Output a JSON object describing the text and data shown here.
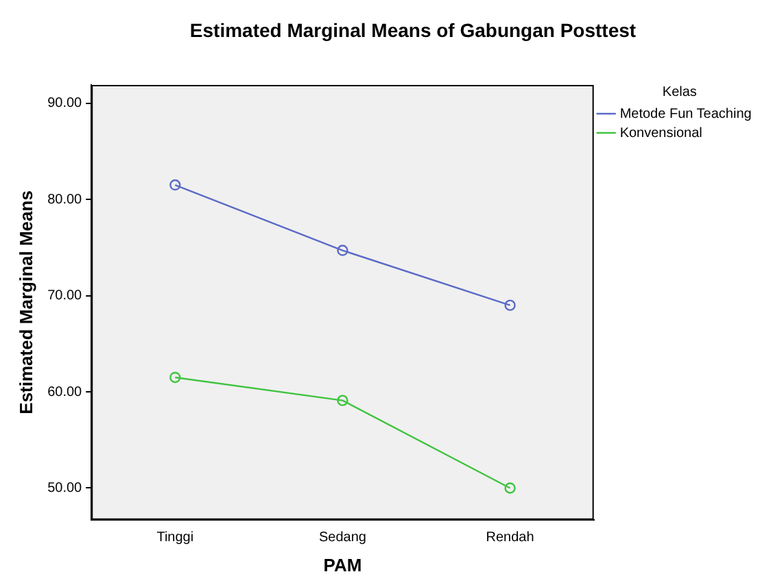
{
  "chart_data": {
    "type": "line",
    "title": "Estimated Marginal Means of Gabungan Posttest",
    "xlabel": "PAM",
    "ylabel": "Estimated Marginal Means",
    "legend_title": "Kelas",
    "legend": "top right",
    "marker": "circle",
    "grid": false,
    "categories": [
      "Tinggi",
      "Sedang",
      "Rendah"
    ],
    "series": [
      {
        "name": "Metode Fun Teaching",
        "color": "#5b6bc6",
        "values": [
          81.5,
          74.7,
          69.0
        ]
      },
      {
        "name": "Konvensional",
        "color": "#3fc43f",
        "values": [
          61.5,
          59.1,
          50.0
        ]
      }
    ],
    "ylim": [
      46.7,
      91.9
    ],
    "yticks": [
      {
        "value": 50,
        "label": "50.00"
      },
      {
        "value": 60,
        "label": "60.00"
      },
      {
        "value": 70,
        "label": "70.00"
      },
      {
        "value": 80,
        "label": "80.00"
      },
      {
        "value": 90,
        "label": "90.00"
      }
    ]
  }
}
